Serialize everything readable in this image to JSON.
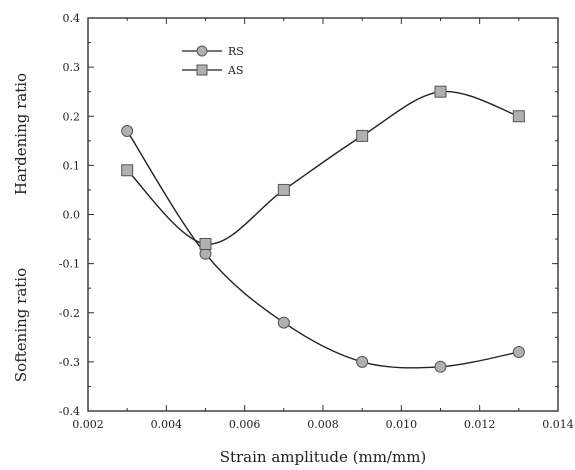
{
  "chart_data": {
    "type": "line",
    "xlabel": "Strain amplitude (mm/mm)",
    "ylabel_top": "Hardening ratio",
    "ylabel_bottom": "Softening ratio",
    "xlim": [
      0.002,
      0.014
    ],
    "ylim": [
      -0.4,
      0.4
    ],
    "x_ticks": [
      "0.002",
      "0.004",
      "0.006",
      "0.008",
      "0.010",
      "0.012",
      "0.014"
    ],
    "y_ticks": [
      "-0.4",
      "-0.3",
      "-0.2",
      "-0.1",
      "0.0",
      "0.1",
      "0.2",
      "0.3",
      "0.4"
    ],
    "legend": "top-left",
    "series": [
      {
        "name": "RS",
        "marker": "circle",
        "x": [
          0.003,
          0.005,
          0.007,
          0.009,
          0.011,
          0.013
        ],
        "y": [
          0.17,
          -0.08,
          -0.22,
          -0.3,
          -0.31,
          -0.28
        ]
      },
      {
        "name": "AS",
        "marker": "square",
        "x": [
          0.003,
          0.005,
          0.007,
          0.009,
          0.011,
          0.013
        ],
        "y": [
          0.09,
          -0.06,
          0.05,
          0.16,
          0.25,
          0.2
        ]
      }
    ]
  }
}
